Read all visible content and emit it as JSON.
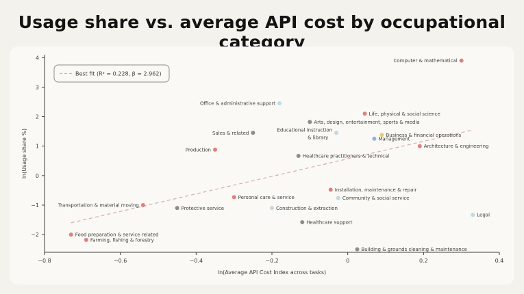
{
  "title": "Usage share vs. average API cost by occupational category",
  "colors": {
    "background": "#f4f2ec",
    "card": "#faf9f5",
    "axis": "#3d3d3a",
    "fit_line": "#d7b2b2",
    "red": "#e0807e",
    "gray": "#8f8d88",
    "lightblue": "#c3d8e0",
    "blue": "#92b4d8",
    "yellow": "#dccf7c"
  },
  "chart_data": {
    "type": "scatter",
    "title": "Usage share vs. average API cost by occupational category",
    "xlabel": "ln(Average API Cost Index across tasks)",
    "ylabel": "ln(Usage share %)",
    "xlim": [
      -0.8,
      0.4
    ],
    "ylim": [
      -2.6,
      4.1
    ],
    "xticks": [
      -0.8,
      -0.6,
      -0.4,
      -0.2,
      0,
      0.2,
      0.4
    ],
    "xtick_labels": [
      "−0.8",
      "−0.6",
      "−0.4",
      "−0.2",
      "0",
      "0.2",
      "0.4"
    ],
    "yticks": [
      4,
      3,
      2,
      1,
      0,
      -1,
      -2
    ],
    "ytick_labels": [
      "4",
      "3",
      "2",
      "1",
      "0",
      "−1",
      "−2"
    ],
    "grid": false,
    "legend": {
      "placement": "top-left",
      "label": "Best fit (R² = 0.228, β = 2.962)"
    },
    "fit_line": {
      "x": [
        -0.73,
        0.33
      ],
      "y": [
        -1.6,
        1.55
      ]
    },
    "points": [
      {
        "label": "Computer & mathematical",
        "x": 0.3,
        "y": 3.9,
        "color": "red",
        "label_side": "left"
      },
      {
        "label": "Office & administrative support",
        "x": -0.18,
        "y": 2.45,
        "color": "lightblue",
        "label_side": "left"
      },
      {
        "label": "Life, physical & social science",
        "x": 0.045,
        "y": 2.1,
        "color": "red",
        "label_side": "right"
      },
      {
        "label": "Arts, design, entertainment, sports & media",
        "x": -0.1,
        "y": 1.82,
        "color": "gray",
        "label_side": "right"
      },
      {
        "label": "Sales & related",
        "x": -0.25,
        "y": 1.45,
        "color": "gray",
        "label_side": "left"
      },
      {
        "label": "Educational instruction & library",
        "x": -0.03,
        "y": 1.45,
        "color": "lightblue",
        "label_side": "left"
      },
      {
        "label": "Business & financial operations",
        "x": 0.09,
        "y": 1.38,
        "color": "yellow",
        "label_side": "right"
      },
      {
        "label": "Management",
        "x": 0.07,
        "y": 1.25,
        "color": "blue",
        "label_side": "right"
      },
      {
        "label": "Architecture & engineering",
        "x": 0.19,
        "y": 1.0,
        "color": "red",
        "label_side": "right"
      },
      {
        "label": "Production",
        "x": -0.35,
        "y": 0.88,
        "color": "red",
        "label_side": "left"
      },
      {
        "label": "Healthcare practitioners & technical",
        "x": -0.13,
        "y": 0.67,
        "color": "gray",
        "label_side": "right"
      },
      {
        "label": "Installation, maintenance & repair",
        "x": -0.045,
        "y": -0.48,
        "color": "red",
        "label_side": "right"
      },
      {
        "label": "Personal care & service",
        "x": -0.3,
        "y": -0.73,
        "color": "red",
        "label_side": "right"
      },
      {
        "label": "Community & social service",
        "x": -0.025,
        "y": -0.76,
        "color": "lightblue",
        "label_side": "right"
      },
      {
        "label": "Transportation & material moving",
        "x": -0.54,
        "y": -1.0,
        "color": "red",
        "label_side": "left"
      },
      {
        "label": "Protective service",
        "x": -0.45,
        "y": -1.1,
        "color": "gray",
        "label_side": "right"
      },
      {
        "label": "Construction & extraction",
        "x": -0.2,
        "y": -1.1,
        "color": "lightblue",
        "label_side": "right"
      },
      {
        "label": "Legal",
        "x": 0.33,
        "y": -1.33,
        "color": "lightblue",
        "label_side": "right"
      },
      {
        "label": "Healthcare support",
        "x": -0.12,
        "y": -1.58,
        "color": "gray",
        "label_side": "right"
      },
      {
        "label": "Food preparation & service related",
        "x": -0.73,
        "y": -2.0,
        "color": "red",
        "label_side": "right"
      },
      {
        "label": "Farming, fishing & forestry",
        "x": -0.69,
        "y": -2.18,
        "color": "red",
        "label_side": "right"
      },
      {
        "label": "Building & grounds cleaning & maintenance",
        "x": 0.025,
        "y": -2.5,
        "color": "gray",
        "label_side": "right"
      }
    ]
  }
}
